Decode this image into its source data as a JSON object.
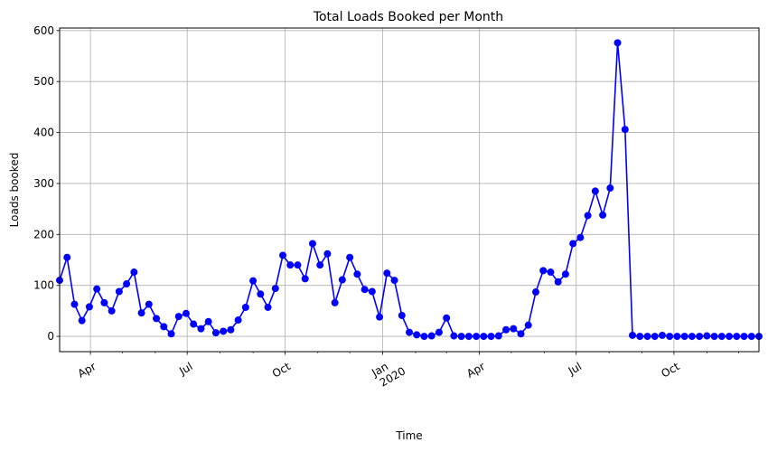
{
  "chart_data": {
    "type": "line",
    "title": "Total Loads Booked per Month",
    "xlabel": "Time",
    "ylabel": "Loads booked",
    "grid": true,
    "xlim": [
      "2019-03-03",
      "2020-12-20"
    ],
    "ylim": [
      -30,
      605
    ],
    "yticks": [
      0,
      100,
      200,
      300,
      400,
      500,
      600
    ],
    "xticks": [
      {
        "date": "2019-04-01",
        "label": "Apr",
        "sublabel": ""
      },
      {
        "date": "2019-07-01",
        "label": "Jul",
        "sublabel": ""
      },
      {
        "date": "2019-10-01",
        "label": "Oct",
        "sublabel": ""
      },
      {
        "date": "2020-01-01",
        "label": "Jan",
        "sublabel": "2020"
      },
      {
        "date": "2020-04-01",
        "label": "Apr",
        "sublabel": ""
      },
      {
        "date": "2020-07-01",
        "label": "Jul",
        "sublabel": ""
      },
      {
        "date": "2020-10-01",
        "label": "Oct",
        "sublabel": ""
      }
    ],
    "series": [
      {
        "name": "",
        "color": "#0000ff",
        "marker": "circle",
        "x": [
          "2019-03-03",
          "2019-03-10",
          "2019-03-17",
          "2019-03-24",
          "2019-03-31",
          "2019-04-07",
          "2019-04-14",
          "2019-04-21",
          "2019-04-28",
          "2019-05-05",
          "2019-05-12",
          "2019-05-19",
          "2019-05-26",
          "2019-06-02",
          "2019-06-09",
          "2019-06-16",
          "2019-06-23",
          "2019-06-30",
          "2019-07-07",
          "2019-07-14",
          "2019-07-21",
          "2019-07-28",
          "2019-08-04",
          "2019-08-11",
          "2019-08-18",
          "2019-08-25",
          "2019-09-01",
          "2019-09-08",
          "2019-09-15",
          "2019-09-22",
          "2019-09-29",
          "2019-10-06",
          "2019-10-13",
          "2019-10-20",
          "2019-10-27",
          "2019-11-03",
          "2019-11-10",
          "2019-11-17",
          "2019-11-24",
          "2019-12-01",
          "2019-12-08",
          "2019-12-15",
          "2019-12-22",
          "2019-12-29",
          "2020-01-05",
          "2020-01-12",
          "2020-01-19",
          "2020-01-26",
          "2020-02-02",
          "2020-02-09",
          "2020-02-16",
          "2020-02-23",
          "2020-03-01",
          "2020-03-08",
          "2020-03-15",
          "2020-03-22",
          "2020-03-29",
          "2020-04-05",
          "2020-04-12",
          "2020-04-19",
          "2020-04-26",
          "2020-05-03",
          "2020-05-10",
          "2020-05-17",
          "2020-05-24",
          "2020-05-31",
          "2020-06-07",
          "2020-06-14",
          "2020-06-21",
          "2020-06-28",
          "2020-07-05",
          "2020-07-12",
          "2020-07-19",
          "2020-07-26",
          "2020-08-02",
          "2020-08-09",
          "2020-08-16",
          "2020-08-23",
          "2020-08-30",
          "2020-09-06",
          "2020-09-13",
          "2020-09-20",
          "2020-09-27",
          "2020-10-04",
          "2020-10-11",
          "2020-10-18",
          "2020-10-25",
          "2020-11-01",
          "2020-11-08",
          "2020-11-15",
          "2020-11-22",
          "2020-11-29",
          "2020-12-06",
          "2020-12-13",
          "2020-12-20"
        ],
        "values": [
          110,
          155,
          63,
          31,
          58,
          93,
          66,
          50,
          88,
          103,
          126,
          46,
          63,
          35,
          19,
          5,
          39,
          45,
          24,
          15,
          29,
          7,
          10,
          13,
          32,
          57,
          109,
          83,
          57,
          94,
          159,
          140,
          140,
          113,
          182,
          140,
          162,
          66,
          111,
          155,
          122,
          92,
          88,
          38,
          124,
          110,
          41,
          8,
          3,
          0,
          1,
          8,
          36,
          1,
          0,
          0,
          0,
          0,
          0,
          1,
          13,
          15,
          5,
          22,
          87,
          129,
          126,
          107,
          122,
          182,
          194,
          237,
          285,
          238,
          291,
          576,
          406,
          2,
          0,
          0,
          0,
          2,
          0,
          0,
          0,
          0,
          0,
          1,
          0,
          0,
          0,
          0,
          0,
          0,
          0
        ]
      }
    ]
  }
}
